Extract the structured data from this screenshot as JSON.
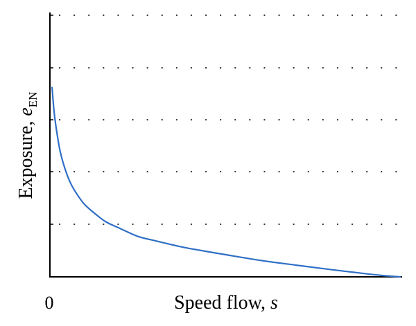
{
  "chart_data": {
    "type": "line",
    "title": "",
    "xlabel": {
      "text": "Speed flow, ",
      "var": "s"
    },
    "ylabel": {
      "text": "Exposure, ",
      "var": "e",
      "sub": "EN"
    },
    "x_tick_labels": [
      "0"
    ],
    "y_tick_labels": [],
    "grid": "horizontal-dotted",
    "xlim": [
      0,
      1
    ],
    "ylim": [
      0,
      1
    ],
    "legend": "none",
    "series": [
      {
        "color": "#2f6fc6",
        "x": [
          0.006,
          0.012,
          0.02,
          0.03,
          0.045,
          0.06,
          0.08,
          0.1,
          0.13,
          0.16,
          0.2,
          0.25,
          0.3,
          0.35,
          0.4,
          0.5,
          0.6,
          0.7,
          0.8,
          0.9,
          0.95,
          1.0
        ],
        "y": [
          0.726,
          0.63,
          0.55,
          0.475,
          0.405,
          0.355,
          0.31,
          0.275,
          0.24,
          0.21,
          0.185,
          0.155,
          0.138,
          0.122,
          0.108,
          0.085,
          0.063,
          0.045,
          0.028,
          0.012,
          0.005,
          0.0
        ]
      }
    ]
  }
}
